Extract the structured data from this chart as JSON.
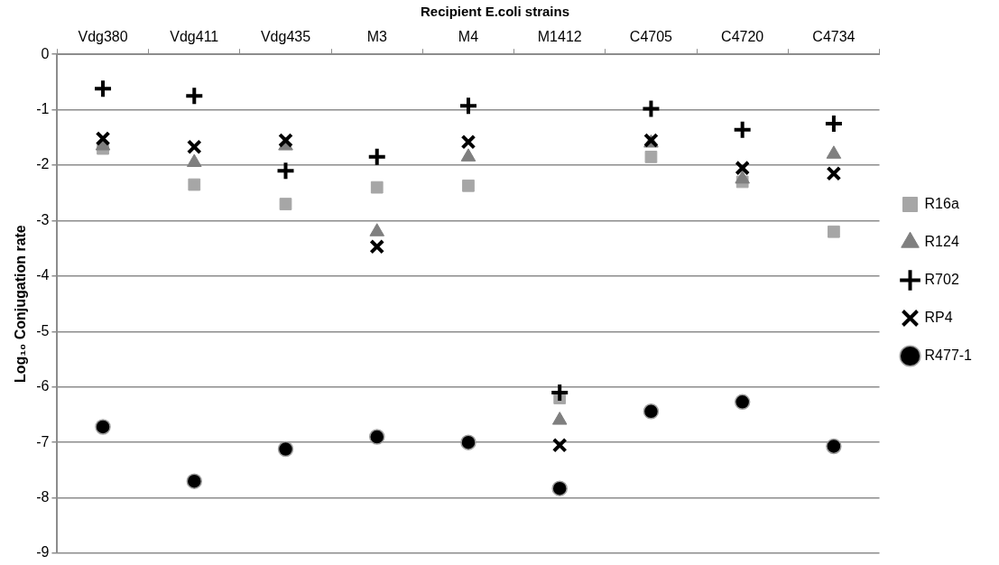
{
  "chart_data": {
    "type": "scatter",
    "title": "Recipient E.coli strains",
    "ylabel": "Log₁₀ Conjugation rate",
    "categories": [
      "Vdg380",
      "Vdg411",
      "Vdg435",
      "M3",
      "M4",
      "M1412",
      "C4705",
      "C4720",
      "C4734"
    ],
    "ylim": [
      -9,
      0
    ],
    "yticks": [
      -9,
      -8,
      -7,
      -6,
      -5,
      -4,
      -3,
      -2,
      -1,
      0
    ],
    "grid": "y",
    "legend": "right",
    "series": [
      {
        "name": "R16a",
        "color": "#a6a6a6",
        "marker": "square",
        "values": [
          -1.7,
          -2.35,
          -2.7,
          -2.4,
          -2.37,
          -6.2,
          -1.85,
          -2.3,
          -3.2
        ]
      },
      {
        "name": "R124",
        "color": "#7f7f7f",
        "marker": "triangle",
        "values": [
          -1.65,
          -1.95,
          -1.65,
          -3.2,
          -1.85,
          -6.6,
          -1.6,
          -2.25,
          -1.8
        ]
      },
      {
        "name": "R702",
        "color": "#000000",
        "marker": "plus",
        "values": [
          -0.62,
          -0.75,
          -2.1,
          -1.85,
          -0.93,
          -6.1,
          -0.98,
          -1.36,
          -1.25
        ]
      },
      {
        "name": "RP4",
        "color": "#000000",
        "marker": "cross",
        "values": [
          -1.52,
          -1.67,
          -1.55,
          -3.47,
          -1.58,
          -7.05,
          -1.55,
          -2.05,
          -2.15
        ]
      },
      {
        "name": "R477-1",
        "color": "#000000",
        "marker": "circle",
        "values": [
          -6.72,
          -7.7,
          -7.12,
          -6.9,
          -7.0,
          -7.83,
          -6.44,
          -6.27,
          -7.07
        ]
      }
    ]
  }
}
